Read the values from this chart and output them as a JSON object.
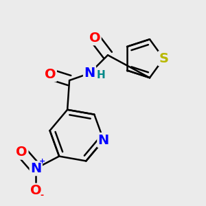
{
  "bg_color": "#ebebeb",
  "bond_color": "#000000",
  "bond_width": 1.8,
  "dbo": 0.018,
  "atom_colors": {
    "O": "#ff0000",
    "N": "#0000ff",
    "S": "#b8b800",
    "H": "#008888",
    "C": "#000000"
  },
  "fs": 14,
  "fs_small": 10,
  "xlim": [
    0.0,
    1.0
  ],
  "ylim": [
    0.0,
    1.0
  ]
}
